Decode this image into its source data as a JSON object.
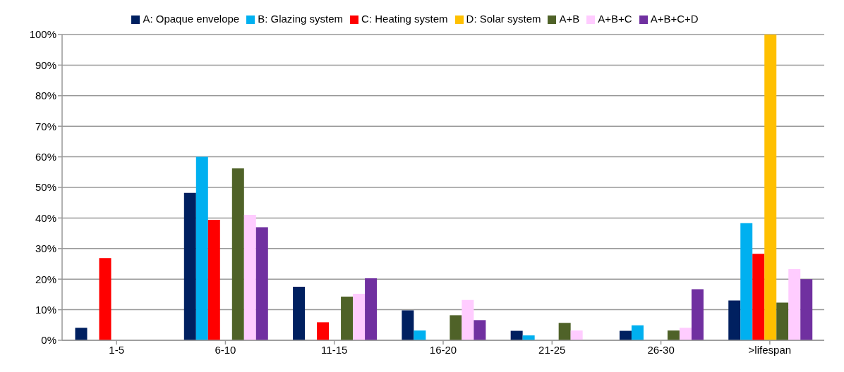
{
  "chart_data": {
    "type": "bar",
    "categories": [
      "1-5",
      "6-10",
      "11-15",
      "16-20",
      "21-25",
      "26-30",
      ">lifespan"
    ],
    "series": [
      {
        "name": "A: Opaque envelope",
        "color": "#002060",
        "values": [
          4.1,
          48.2,
          17.5,
          9.8,
          3.1,
          3.1,
          13
        ]
      },
      {
        "name": "B: Glazing system",
        "color": "#00b0f0",
        "values": [
          0,
          60,
          0,
          3.2,
          1.6,
          4.9,
          38.3
        ]
      },
      {
        "name": "C: Heating system",
        "color": "#ff0000",
        "values": [
          26.9,
          39.4,
          5.9,
          0,
          0,
          0,
          28.3
        ]
      },
      {
        "name": "D: Solar system",
        "color": "#ffc000",
        "values": [
          0,
          0,
          0,
          0,
          0,
          0,
          100
        ]
      },
      {
        "name": "A+B",
        "color": "#4f6228",
        "values": [
          0,
          56.2,
          14.3,
          8.2,
          5.7,
          3.2,
          12.3
        ]
      },
      {
        "name": "A+B+C",
        "color": "#ffccff",
        "values": [
          0,
          41,
          15.2,
          13.2,
          3.2,
          4.1,
          23.3
        ]
      },
      {
        "name": "A+B+C+D",
        "color": "#7030a0",
        "values": [
          0,
          37,
          20.3,
          6.6,
          0,
          16.7,
          20
        ]
      }
    ],
    "ylim": [
      0,
      100
    ],
    "yticks": [
      {
        "value": 0,
        "label": "0%"
      },
      {
        "value": 10,
        "label": "10%"
      },
      {
        "value": 20,
        "label": "20%"
      },
      {
        "value": 30,
        "label": "30%"
      },
      {
        "value": 40,
        "label": "40%"
      },
      {
        "value": 50,
        "label": "50%"
      },
      {
        "value": 60,
        "label": "60%"
      },
      {
        "value": 70,
        "label": "70%"
      },
      {
        "value": 80,
        "label": "80%"
      },
      {
        "value": 90,
        "label": "90%"
      },
      {
        "value": 100,
        "label": "100%"
      }
    ],
    "grid": "y",
    "legend": "top"
  }
}
